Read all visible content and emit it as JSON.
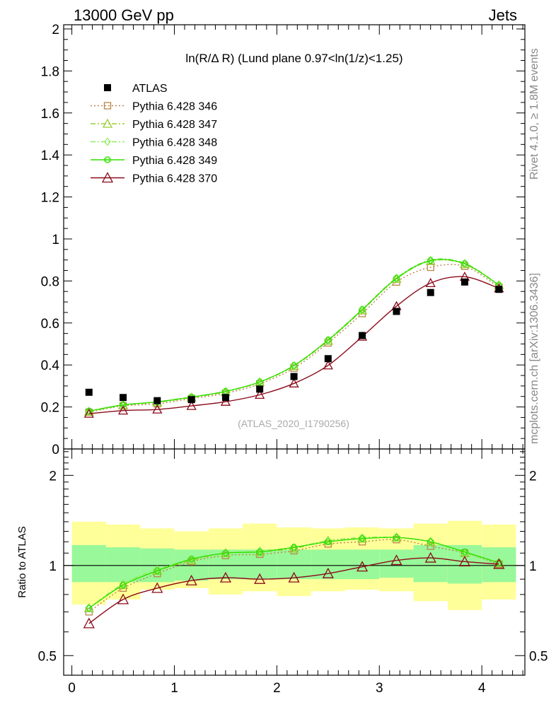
{
  "header": {
    "left": "13000 GeV pp",
    "right": "Jets"
  },
  "side_labels": {
    "rivet": "Rivet 4.1.0, ≥ 1.8M events",
    "mcplots": "mcplots.cern.ch [arXiv:1306.3436]"
  },
  "plot_title": "ln(R/Δ R) (Lund plane 0.97<ln(1/z)<1.25)",
  "watermark": "(ATLAS_2020_I1790256)",
  "ratio_ylabel": "Ratio to ATLAS",
  "legend": [
    {
      "label": "ATLAS",
      "color": "#000000",
      "marker": "filled-square",
      "line": "none"
    },
    {
      "label": "Pythia 6.428 346",
      "color": "#b8864b",
      "marker": "open-square",
      "line": "dotted"
    },
    {
      "label": "Pythia 6.428 347",
      "color": "#9acd32",
      "marker": "open-triangle",
      "line": "dashdot"
    },
    {
      "label": "Pythia 6.428 348",
      "color": "#90ee60",
      "marker": "open-diamond",
      "line": "dashdot"
    },
    {
      "label": "Pythia 6.428 349",
      "color": "#32e000",
      "marker": "open-cross",
      "line": "solid"
    },
    {
      "label": "Pythia 6.428 370",
      "color": "#8b0a1a",
      "marker": "open-triangle",
      "line": "solid"
    }
  ],
  "chart_data": {
    "type": "line",
    "x": [
      0.167,
      0.5,
      0.833,
      1.167,
      1.5,
      1.833,
      2.167,
      2.5,
      2.833,
      3.167,
      3.5,
      3.833,
      4.167
    ],
    "xlim": [
      -0.08,
      4.42
    ],
    "main": {
      "ylim": [
        0,
        2.02
      ],
      "yticks": [
        0,
        0.2,
        0.4,
        0.6,
        0.8,
        1,
        1.2,
        1.4,
        1.6,
        1.8,
        2
      ],
      "ytick_labels": [
        "0",
        "0.2",
        "0.4",
        "0.6",
        "0.8",
        "1",
        "1.2",
        "1.4",
        "1.6",
        "1.8",
        "2"
      ],
      "data": {
        "name": "ATLAS",
        "values": [
          0.27,
          0.245,
          0.23,
          0.235,
          0.245,
          0.285,
          0.345,
          0.43,
          0.54,
          0.655,
          0.745,
          0.795,
          0.76
        ]
      },
      "series": [
        {
          "name": "Pythia 6.428 346",
          "values": [
            0.175,
            0.205,
            0.215,
            0.24,
            0.265,
            0.31,
            0.385,
            0.505,
            0.645,
            0.795,
            0.865,
            0.87,
            0.77
          ]
        },
        {
          "name": "Pythia 6.428 347",
          "values": [
            0.178,
            0.208,
            0.222,
            0.245,
            0.272,
            0.318,
            0.395,
            0.515,
            0.66,
            0.81,
            0.895,
            0.88,
            0.78
          ]
        },
        {
          "name": "Pythia 6.428 348",
          "values": [
            0.18,
            0.21,
            0.225,
            0.248,
            0.275,
            0.32,
            0.398,
            0.52,
            0.665,
            0.815,
            0.9,
            0.885,
            0.782
          ]
        },
        {
          "name": "Pythia 6.428 349",
          "values": [
            0.18,
            0.21,
            0.224,
            0.247,
            0.274,
            0.319,
            0.397,
            0.518,
            0.663,
            0.812,
            0.897,
            0.882,
            0.78
          ]
        },
        {
          "name": "Pythia 6.428 370",
          "values": [
            0.168,
            0.183,
            0.188,
            0.205,
            0.225,
            0.258,
            0.312,
            0.398,
            0.535,
            0.68,
            0.79,
            0.82,
            0.765
          ]
        }
      ]
    },
    "ratio": {
      "ylim": [
        0.43,
        2.45
      ],
      "scale": "log",
      "yticks": [
        0.5,
        1,
        2
      ],
      "ytick_labels": [
        "0.5",
        "1",
        "2"
      ],
      "band_inner": [
        [
          0.88,
          1.17
        ],
        [
          0.88,
          1.15
        ],
        [
          0.88,
          1.14
        ],
        [
          0.89,
          1.13
        ],
        [
          0.9,
          1.13
        ],
        [
          0.9,
          1.13
        ],
        [
          0.9,
          1.13
        ],
        [
          0.9,
          1.13
        ],
        [
          0.9,
          1.13
        ],
        [
          0.91,
          1.13
        ],
        [
          0.88,
          1.17
        ],
        [
          0.87,
          1.17
        ],
        [
          0.88,
          1.15
        ]
      ],
      "band_outer": [
        [
          0.74,
          1.4
        ],
        [
          0.77,
          1.37
        ],
        [
          0.83,
          1.33
        ],
        [
          0.84,
          1.3
        ],
        [
          0.8,
          1.33
        ],
        [
          0.82,
          1.38
        ],
        [
          0.79,
          1.34
        ],
        [
          0.82,
          1.33
        ],
        [
          0.83,
          1.34
        ],
        [
          0.82,
          1.33
        ],
        [
          0.76,
          1.38
        ],
        [
          0.71,
          1.41
        ],
        [
          0.77,
          1.37
        ]
      ],
      "series": [
        {
          "name": "Pythia 6.428 346",
          "values": [
            0.7,
            0.84,
            0.94,
            1.03,
            1.08,
            1.09,
            1.12,
            1.18,
            1.2,
            1.22,
            1.16,
            1.1,
            1.01
          ]
        },
        {
          "name": "Pythia 6.428 347",
          "values": [
            0.72,
            0.86,
            0.96,
            1.04,
            1.1,
            1.11,
            1.14,
            1.21,
            1.23,
            1.24,
            1.2,
            1.1,
            1.02
          ]
        },
        {
          "name": "Pythia 6.428 348",
          "values": [
            0.72,
            0.87,
            0.97,
            1.05,
            1.1,
            1.12,
            1.15,
            1.21,
            1.24,
            1.24,
            1.2,
            1.1,
            1.02
          ]
        },
        {
          "name": "Pythia 6.428 349",
          "values": [
            0.72,
            0.86,
            0.96,
            1.05,
            1.1,
            1.11,
            1.15,
            1.2,
            1.23,
            1.24,
            1.2,
            1.11,
            1.02
          ]
        },
        {
          "name": "Pythia 6.428 370",
          "values": [
            0.64,
            0.77,
            0.84,
            0.89,
            0.91,
            0.9,
            0.91,
            0.94,
            0.99,
            1.04,
            1.06,
            1.03,
            1.01
          ]
        }
      ]
    },
    "xticks": [
      0,
      1,
      2,
      3,
      4
    ],
    "xtick_labels": [
      "0",
      "1",
      "2",
      "3",
      "4"
    ]
  }
}
